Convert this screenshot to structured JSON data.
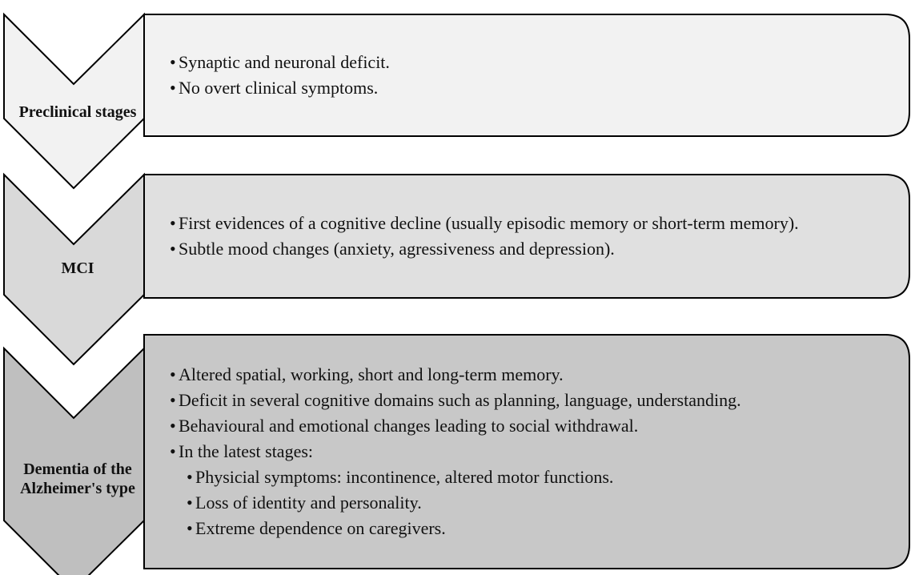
{
  "stages": [
    {
      "label": "Preclinical stages",
      "items": [
        "Synaptic and neuronal deficit.",
        "No overt clinical symptoms."
      ]
    },
    {
      "label": "MCI",
      "items": [
        "First evidences of a cognitive decline (usually episodic memory or short-term memory).",
        "Subtle mood changes (anxiety, agressiveness and depression)."
      ]
    },
    {
      "label": "Dementia of the Alzheimer's type",
      "items": [
        "Altered spatial, working, short and long-term memory.",
        "Deficit in several cognitive domains such as planning, language, understanding.",
        "Behavioural and emotional changes leading to social withdrawal.",
        {
          "text": "In the latest stages:",
          "items": [
            "Physicial symptoms: incontinence,  altered motor functions.",
            "Loss of identity and personality.",
            "Extreme dependence on caregivers."
          ]
        }
      ]
    }
  ]
}
